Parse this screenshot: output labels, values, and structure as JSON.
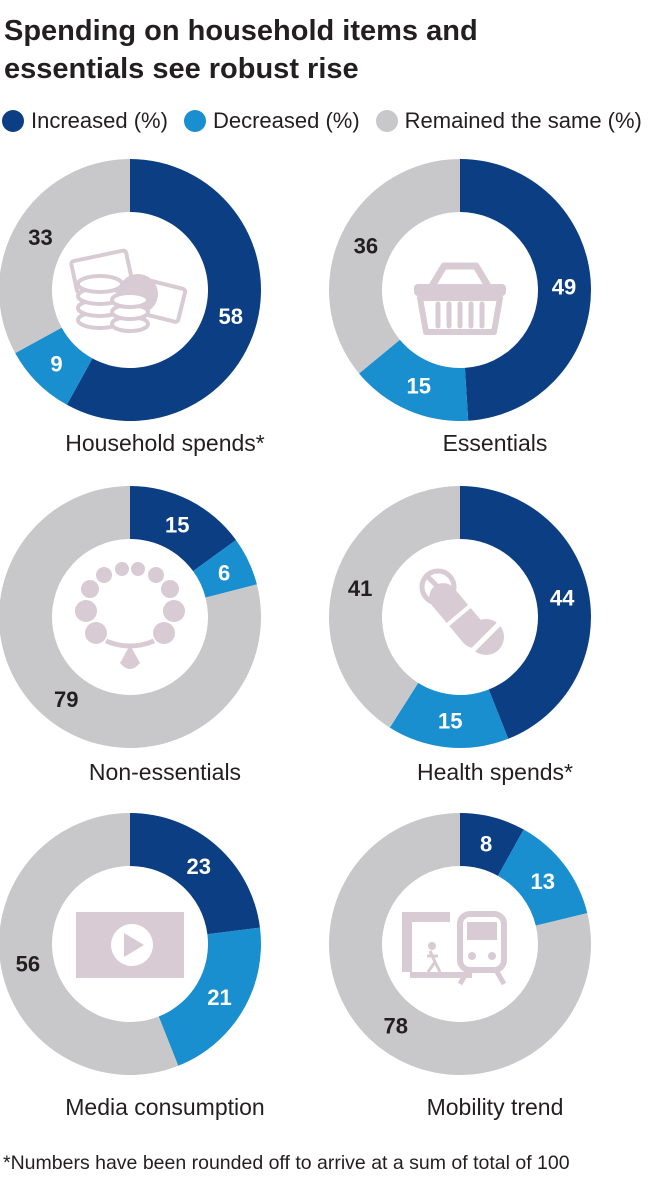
{
  "title_lines": [
    "Spending on household items and",
    "essentials see robust rise"
  ],
  "legend": [
    {
      "label": "Increased (%)",
      "color": "#0b3e82"
    },
    {
      "label": "Decreased (%)",
      "color": "#1a8fd0"
    },
    {
      "label": "Remained the same (%)",
      "color": "#c8c7c9"
    }
  ],
  "chart_data": [
    {
      "type": "pie",
      "label": "Household spends*",
      "icon": "money-coins-icon",
      "series": [
        {
          "name": "Increased (%)",
          "value": 58
        },
        {
          "name": "Decreased (%)",
          "value": 9
        },
        {
          "name": "Remained the same (%)",
          "value": 33
        }
      ]
    },
    {
      "type": "pie",
      "label": "Essentials",
      "icon": "shopping-basket-icon",
      "series": [
        {
          "name": "Increased (%)",
          "value": 49
        },
        {
          "name": "Decreased (%)",
          "value": 15
        },
        {
          "name": "Remained the same (%)",
          "value": 36
        }
      ]
    },
    {
      "type": "pie",
      "label": "Non-essentials",
      "icon": "necklace-icon",
      "series": [
        {
          "name": "Increased (%)",
          "value": 15
        },
        {
          "name": "Decreased (%)",
          "value": 6
        },
        {
          "name": "Remained the same (%)",
          "value": 79
        }
      ]
    },
    {
      "type": "pie",
      "label": "Health spends*",
      "icon": "pills-icon",
      "series": [
        {
          "name": "Increased (%)",
          "value": 44
        },
        {
          "name": "Decreased (%)",
          "value": 15
        },
        {
          "name": "Remained the same (%)",
          "value": 41
        }
      ]
    },
    {
      "type": "pie",
      "label": "Media consumption",
      "icon": "play-screen-icon",
      "series": [
        {
          "name": "Increased (%)",
          "value": 23
        },
        {
          "name": "Decreased (%)",
          "value": 21
        },
        {
          "name": "Remained the same (%)",
          "value": 56
        }
      ]
    },
    {
      "type": "pie",
      "label": "Mobility trend",
      "icon": "train-station-icon",
      "series": [
        {
          "name": "Increased (%)",
          "value": 8
        },
        {
          "name": "Decreased (%)",
          "value": 13
        },
        {
          "name": "Remained the same (%)",
          "value": 78
        }
      ]
    }
  ],
  "footnote": "*Numbers have been rounded off to arrive at a sum of total of 100",
  "icon_color": "#d8cbd3"
}
